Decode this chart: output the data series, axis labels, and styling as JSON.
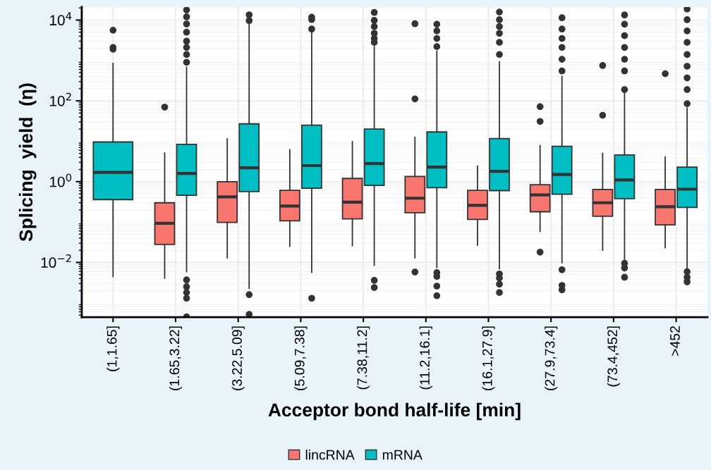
{
  "chart_data": {
    "type": "box",
    "xlabel": "Acceptor bond half-life [min]",
    "ylabel": "Splicing  yield  (η)",
    "categories": [
      "(1,1.65]",
      "(1.65,3.22]",
      "(3.22,5.09]",
      "(5.09,7.38]",
      "(7.38,11.2]",
      "(11.2,16.1]",
      "(16.1,27.9]",
      "(27.9,73.4]",
      "(73.4,452]",
      ">452"
    ],
    "log": "y",
    "ylim": [
      0.00044,
      21000
    ],
    "yticks": [
      {
        "value": 0.01,
        "label": "10$^{−2}$"
      },
      {
        "value": 1,
        "label": "10$^{0}$"
      },
      {
        "value": 100,
        "label": "10$^{2}$"
      },
      {
        "value": 10000,
        "label": "10$^{4}$"
      }
    ],
    "grid": true,
    "legend": "bottom",
    "series": [
      {
        "name": "lincRNA",
        "color": "#f8766d",
        "boxes": [
          null,
          {
            "low": 0.0041,
            "q1": 0.028,
            "median": 0.093,
            "q3": 0.3,
            "high": 5.1,
            "outliers": [
              70
            ]
          },
          {
            "low": 0.013,
            "q1": 0.098,
            "median": 0.42,
            "q3": 1.0,
            "high": 11.4
          },
          {
            "low": 0.025,
            "q1": 0.107,
            "median": 0.25,
            "q3": 0.61,
            "high": 6.2
          },
          {
            "low": 0.026,
            "q1": 0.12,
            "median": 0.31,
            "q3": 1.2,
            "high": 9.8
          },
          {
            "low": 0.013,
            "q1": 0.17,
            "median": 0.39,
            "q3": 1.35,
            "high": 12.5,
            "outliers": [
              8100,
              112,
              0.0058
            ]
          },
          {
            "low": 0.027,
            "q1": 0.116,
            "median": 0.26,
            "q3": 0.61,
            "high": 2.4
          },
          {
            "low": 0.059,
            "q1": 0.18,
            "median": 0.47,
            "q3": 0.84,
            "high": 7.8,
            "outliers": [
              72,
              31,
              0.018
            ]
          },
          {
            "low": 0.02,
            "q1": 0.139,
            "median": 0.3,
            "q3": 0.64,
            "high": 5.0,
            "outliers": [
              750,
              44
            ]
          },
          {
            "low": 0.023,
            "q1": 0.085,
            "median": 0.24,
            "q3": 0.64,
            "high": 4.1,
            "outliers": [
              470
            ]
          }
        ]
      },
      {
        "name": "mRNA",
        "color": "#00bfc4",
        "boxes": [
          {
            "low": 0.0045,
            "q1": 0.36,
            "median": 1.7,
            "q3": 9.6,
            "high": 850,
            "outliers": [
              5600,
              2100,
              1900
            ]
          },
          {
            "low": 0.0059,
            "q1": 0.46,
            "median": 1.6,
            "q3": 8.4,
            "high": 680,
            "outliers": [
              17800,
              12000,
              8000,
              5000,
              3000,
              2100,
              1400,
              900,
              0.0037,
              0.0025,
              0.0018,
              0.0013,
              0.00045
            ]
          },
          {
            "low": 0.0023,
            "q1": 0.57,
            "median": 2.2,
            "q3": 27,
            "high": 7900,
            "outliers": [
              13500,
              9700,
              0.0016,
              0.00052
            ]
          },
          {
            "low": 0.0057,
            "q1": 0.69,
            "median": 2.5,
            "q3": 25,
            "high": 5000,
            "outliers": [
              11800,
              10300,
              6000,
              0.0013
            ]
          },
          {
            "low": 0.0085,
            "q1": 0.81,
            "median": 2.8,
            "q3": 20,
            "high": 2200,
            "outliers": [
              15400,
              9800,
              6900,
              4700,
              3500,
              2800,
              0.0036,
              0.0024
            ]
          },
          {
            "low": 0.0075,
            "q1": 0.71,
            "median": 2.3,
            "q3": 17,
            "high": 1700,
            "outliers": [
              7900,
              5400,
              3500,
              2200,
              0.0056,
              0.0045,
              0.0026,
              0.0015
            ]
          },
          {
            "low": 0.007,
            "q1": 0.6,
            "median": 1.8,
            "q3": 11.7,
            "high": 920,
            "outliers": [
              15800,
              10200,
              6900,
              4700,
              2800,
              1400,
              0.0052,
              0.0041,
              0.0029,
              0.0018
            ]
          },
          {
            "low": 0.0098,
            "q1": 0.49,
            "median": 1.5,
            "q3": 7.5,
            "high": 400,
            "outliers": [
              11400,
              6000,
              3500,
              2100,
              1070,
              550,
              0.0066,
              0.0027,
              0.0021
            ]
          },
          {
            "low": 0.011,
            "q1": 0.38,
            "median": 1.1,
            "q3": 4.6,
            "high": 160,
            "outliers": [
              13400,
              7900,
              4100,
              2100,
              1070,
              550,
              190,
              0.0095,
              0.0073,
              0.0043
            ]
          },
          {
            "low": 0.0068,
            "q1": 0.23,
            "median": 0.65,
            "q3": 2.3,
            "high": 66,
            "outliers": [
              18700,
              10200,
              5400,
              2800,
              1400,
              720,
              370,
              190,
              85,
              0.0059,
              0.0043,
              0.0033
            ]
          }
        ]
      }
    ]
  }
}
